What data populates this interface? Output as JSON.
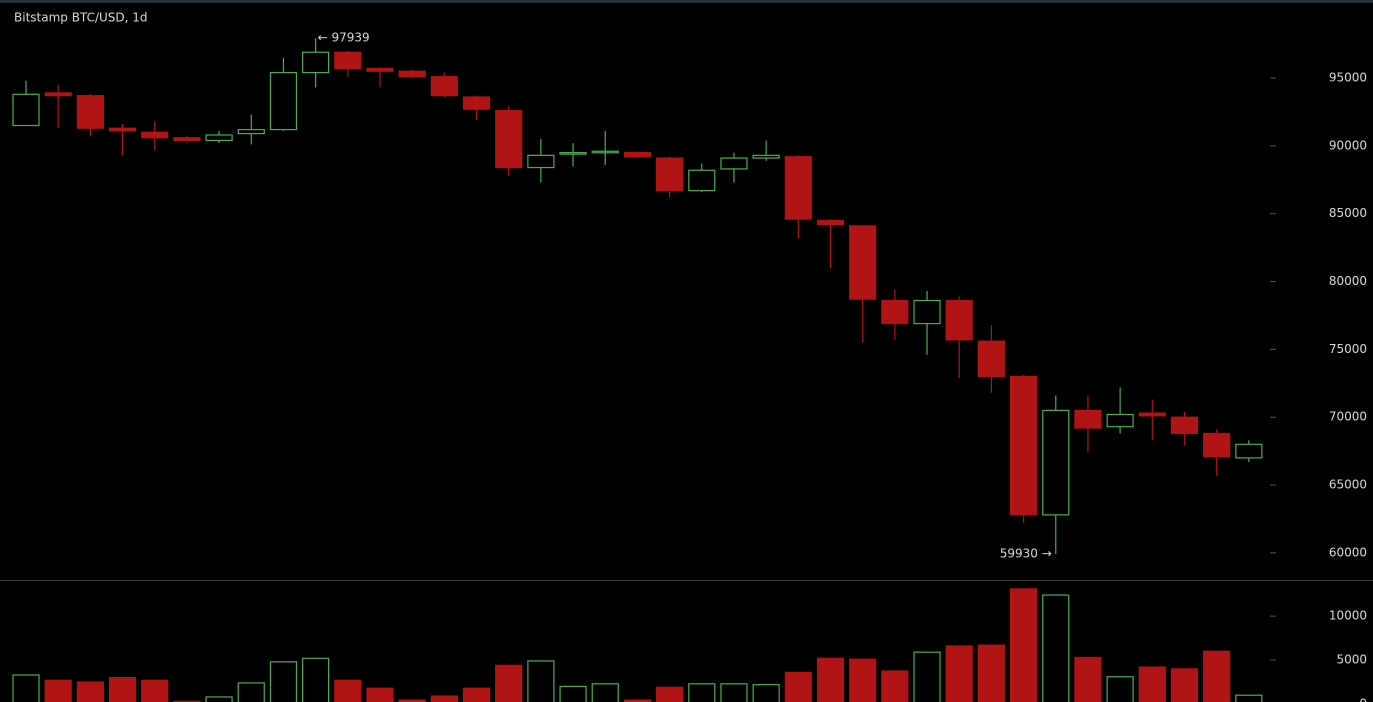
{
  "chart_data": [
    {
      "type": "candlestick",
      "title": "Bitstamp BTC/USD, 1d",
      "open": [
        91500,
        93900,
        93700,
        91300,
        91000,
        90600,
        90400,
        90900,
        91200,
        95400,
        96900,
        95700,
        95500,
        95100,
        93600,
        92600,
        88400,
        89400,
        89500,
        89500,
        89100,
        86700,
        88300,
        89100,
        89200,
        84500,
        84100,
        78600,
        76900,
        78600,
        75600,
        73000,
        62800,
        70500,
        69300,
        70300,
        70000,
        68800,
        67000
      ],
      "high": [
        94800,
        94500,
        93800,
        91600,
        91800,
        90700,
        91100,
        92300,
        96500,
        97939,
        97000,
        95800,
        95600,
        95400,
        93700,
        92900,
        90500,
        90200,
        91100,
        89600,
        89200,
        88700,
        89500,
        90400,
        89300,
        84600,
        84100,
        79400,
        79300,
        78900,
        76800,
        73100,
        71600,
        71600,
        72200,
        71300,
        70400,
        69100,
        68300
      ],
      "low": [
        91500,
        91300,
        90700,
        89300,
        89700,
        90200,
        90200,
        90100,
        91100,
        94300,
        95100,
        94300,
        95000,
        93600,
        91900,
        87800,
        87300,
        88500,
        88600,
        89100,
        86200,
        86600,
        87300,
        88900,
        83200,
        81000,
        75500,
        75700,
        74600,
        72900,
        71800,
        62200,
        59930,
        67400,
        68800,
        68300,
        67900,
        65700,
        66700
      ],
      "close": [
        93800,
        93700,
        91300,
        91100,
        90600,
        90400,
        90800,
        91200,
        95400,
        96900,
        95700,
        95500,
        95100,
        93700,
        92700,
        88400,
        89300,
        89500,
        89600,
        89200,
        86700,
        88200,
        89100,
        89300,
        84600,
        84200,
        78700,
        76900,
        78600,
        75700,
        73000,
        62800,
        70500,
        69200,
        70200,
        70100,
        68800,
        67100,
        68000
      ],
      "up_color": "#4caf50",
      "down_color": "#b01414",
      "ylim": [
        58000,
        100750
      ],
      "yticks": [
        60000,
        65000,
        70000,
        75000,
        80000,
        85000,
        90000,
        95000
      ],
      "annotations": [
        {
          "label": "← 97939",
          "value": 97939
        },
        {
          "label": "59930 →",
          "value": 59930
        }
      ]
    },
    {
      "type": "bar",
      "values": [
        3300,
        2700,
        2500,
        3000,
        2700,
        300,
        800,
        2400,
        4800,
        5200,
        2700,
        1800,
        450,
        900,
        1800,
        4400,
        4900,
        2000,
        2300,
        450,
        1900,
        2300,
        2300,
        2200,
        3600,
        5200,
        5100,
        3750,
        5900,
        6600,
        6700,
        13100,
        12400,
        5300,
        3100,
        4200,
        4000,
        6000,
        1000
      ],
      "ylim": [
        0,
        14000
      ],
      "yticks": [
        0,
        5000,
        10000
      ]
    }
  ]
}
